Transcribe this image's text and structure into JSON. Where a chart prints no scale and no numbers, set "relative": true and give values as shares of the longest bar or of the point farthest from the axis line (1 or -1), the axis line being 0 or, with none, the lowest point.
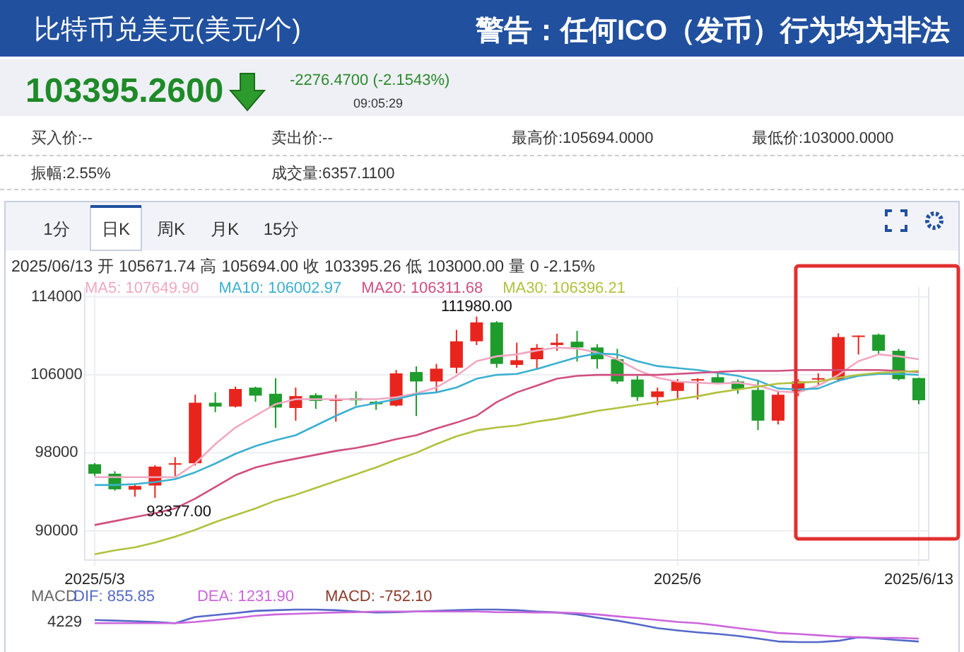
{
  "chart_data": [
    {
      "type": "other",
      "title": "比特币兑美元(美元/个)",
      "subtitle": "警告：任何ICO（发币）行为均为非法",
      "annotations": [
        "103395.2600",
        "-2276.4700 (-2.1543%)",
        "09:05:29",
        "买入价:--",
        "卖出价:--",
        "最高价:105694.0000",
        "最低价:103000.0000",
        "振幅:2.55%",
        "成交量:6357.1100",
        "1分",
        "日K",
        "周K",
        "月K",
        "15分"
      ]
    },
    {
      "type": "candlestick",
      "title": "2025/06/13 开 105671.74 高 105694.00 收 103395.26 低 103000.00 量 0 -2.15%",
      "categories": [
        "2025/5/3",
        null,
        null,
        null,
        null,
        null,
        null,
        null,
        null,
        null,
        null,
        null,
        null,
        null,
        null,
        null,
        null,
        null,
        null,
        null,
        null,
        null,
        null,
        null,
        null,
        null,
        null,
        null,
        null,
        "2025/6",
        null,
        null,
        null,
        null,
        null,
        null,
        null,
        null,
        null,
        null,
        null,
        "2025/6/13"
      ],
      "ohlc": [
        [
          96830,
          96930,
          95620,
          95860
        ],
        [
          95860,
          96110,
          94120,
          94260
        ],
        [
          94220,
          94750,
          93500,
          94600
        ],
        [
          94650,
          96740,
          93377,
          96590
        ],
        [
          96830,
          97560,
          95620,
          96930
        ],
        [
          96930,
          103960,
          96690,
          103140
        ],
        [
          103140,
          104210,
          102170,
          102750
        ],
        [
          102750,
          104790,
          102650,
          104550
        ],
        [
          104690,
          104790,
          103240,
          103870
        ],
        [
          104060,
          105660,
          100570,
          102650
        ],
        [
          102600,
          104690,
          101300,
          103820
        ],
        [
          103920,
          104110,
          102510,
          103330
        ],
        [
          103380,
          103960,
          101200,
          103480
        ],
        [
          103620,
          104300,
          102850,
          103380
        ],
        [
          103240,
          103330,
          102410,
          102990
        ],
        [
          102850,
          106490,
          102750,
          106150
        ],
        [
          106290,
          106870,
          101780,
          105320
        ],
        [
          105320,
          107120,
          104210,
          106630
        ],
        [
          106730,
          110610,
          106150,
          109440
        ],
        [
          109440,
          111980,
          109060,
          111380
        ],
        [
          111380,
          111500,
          106730,
          107120
        ],
        [
          107020,
          109300,
          106730,
          107500
        ],
        [
          107600,
          109150,
          106530,
          108770
        ],
        [
          109060,
          110220,
          108470,
          109300
        ],
        [
          109400,
          110510,
          107360,
          108810
        ],
        [
          108810,
          109150,
          106630,
          107600
        ],
        [
          107600,
          108670,
          105080,
          105320
        ],
        [
          105520,
          105900,
          103330,
          103720
        ],
        [
          103720,
          104690,
          102900,
          104300
        ],
        [
          104350,
          105560,
          103580,
          105320
        ],
        [
          105470,
          105660,
          103480,
          105560
        ],
        [
          105760,
          106240,
          105080,
          105180
        ],
        [
          105320,
          105520,
          104060,
          104550
        ],
        [
          104450,
          105520,
          100330,
          101300
        ],
        [
          101300,
          104300,
          100910,
          103960
        ],
        [
          104300,
          105560,
          103820,
          105320
        ],
        [
          105560,
          106150,
          104840,
          105660
        ],
        [
          105520,
          110270,
          105270,
          109880
        ],
        [
          109930,
          110030,
          108090,
          110030
        ],
        [
          110120,
          110220,
          108090,
          108470
        ],
        [
          108470,
          108670,
          105420,
          105560
        ],
        [
          105671.74,
          105694,
          103000,
          103395.26
        ]
      ],
      "colors": [
        "#1e9c2c",
        "#1e9c2c",
        "#e8251d",
        "#e8251d",
        "#e8251d",
        "#e8251d",
        "#1e9c2c",
        "#e8251d",
        "#1e9c2c",
        "#1e9c2c",
        "#e8251d",
        "#1e9c2c",
        "#e8251d",
        "#1e9c2c",
        "#1e9c2c",
        "#e8251d",
        "#1e9c2c",
        "#e8251d",
        "#e8251d",
        "#e8251d",
        "#1e9c2c",
        "#e8251d",
        "#e8251d",
        "#e8251d",
        "#1e9c2c",
        "#1e9c2c",
        "#1e9c2c",
        "#1e9c2c",
        "#e8251d",
        "#e8251d",
        "#e8251d",
        "#1e9c2c",
        "#1e9c2c",
        "#1e9c2c",
        "#e8251d",
        "#e8251d",
        "#e8251d",
        "#e8251d",
        "#e8251d",
        "#1e9c2c",
        "#1e9c2c",
        "#1e9c2c"
      ],
      "series": [
        {
          "type": "line",
          "name": "MA5: 107649.90",
          "color": "#f0a8c2",
          "values": [
            95500,
            95500,
            95500,
            95500,
            95500,
            96900,
            98900,
            100600,
            101800,
            103000,
            103500,
            103500,
            103500,
            103500,
            103500,
            103700,
            104100,
            104700,
            105900,
            107400,
            107900,
            108100,
            108500,
            108800,
            108700,
            108300,
            107600,
            106500,
            105700,
            105300,
            105200,
            105100,
            105200,
            104900,
            104300,
            104200,
            104900,
            106000,
            107400,
            108100,
            107900,
            107600
          ]
        },
        {
          "type": "line",
          "name": "MA10: 106002.97",
          "color": "#3cb0d0",
          "values": [
            94700,
            94700,
            94800,
            95000,
            95300,
            96000,
            96900,
            97900,
            98700,
            99300,
            99800,
            100800,
            101800,
            102700,
            103100,
            103500,
            104000,
            104200,
            104700,
            105600,
            106000,
            106100,
            106600,
            107200,
            107800,
            108200,
            108100,
            107400,
            106900,
            106700,
            106500,
            106200,
            105900,
            105400,
            104600,
            104500,
            104600,
            105400,
            105900,
            106100,
            106100,
            106000
          ]
        },
        {
          "type": "line",
          "name": "MA20: 106311.68",
          "color": "#d04f80",
          "values": [
            90600,
            91000,
            91400,
            91800,
            92300,
            93300,
            94500,
            95700,
            96500,
            97000,
            97400,
            97800,
            98200,
            98500,
            98900,
            99400,
            99800,
            100500,
            101100,
            101800,
            103200,
            104200,
            104900,
            105600,
            105900,
            106000,
            106000,
            106000,
            106000,
            106100,
            106200,
            106300,
            106400,
            106400,
            106400,
            106500,
            106500,
            106500,
            106500,
            106500,
            106400,
            106300
          ]
        },
        {
          "type": "line",
          "name": "MA30: 106396.21",
          "color": "#b2c13e",
          "values": [
            87600,
            88000,
            88300,
            88800,
            89400,
            90100,
            90900,
            91600,
            92300,
            93100,
            93700,
            94400,
            95100,
            95800,
            96500,
            97300,
            98000,
            98900,
            99700,
            100300,
            100600,
            100800,
            101200,
            101500,
            101900,
            102300,
            102600,
            102900,
            103200,
            103500,
            103800,
            104200,
            104500,
            104800,
            105100,
            105200,
            105300,
            105700,
            106000,
            106200,
            106300,
            106400
          ]
        }
      ],
      "ylim": [
        87000,
        115000
      ],
      "yticks": [
        90000,
        98000,
        106000,
        114000
      ],
      "grid": true,
      "legend": "top left",
      "annotations": [
        {
          "text": "111980.00",
          "y": 111980
        },
        {
          "text": "93377.00",
          "y": 93377
        }
      ]
    },
    {
      "type": "line",
      "relative": true,
      "title": "MACD",
      "categories": [
        null,
        null,
        null,
        null,
        null,
        null,
        null,
        null,
        null,
        null,
        null,
        null,
        null,
        null,
        null,
        null,
        null,
        null,
        null,
        null,
        null,
        null,
        null,
        null,
        null,
        null,
        null,
        null,
        null,
        null,
        null,
        null,
        null,
        null,
        null,
        null,
        null,
        null,
        null,
        null,
        null,
        null
      ],
      "series": [
        {
          "name": "DIF: 855.85",
          "color": "#5468c8",
          "values": [
            0.68,
            0.66,
            0.64,
            0.62,
            0.58,
            0.77,
            0.83,
            0.89,
            0.96,
            0.98,
            1,
            1,
            0.98,
            0.94,
            0.91,
            0.92,
            0.94,
            0.96,
            0.98,
            1,
            1,
            0.98,
            0.94,
            0.91,
            0.85,
            0.75,
            0.66,
            0.55,
            0.43,
            0.36,
            0.3,
            0.25,
            0.19,
            0.11,
            0.02,
            0,
            0,
            0.04,
            0.15,
            0.11,
            0.06,
            0.02
          ]
        },
        {
          "name": "DEA: 1231.90",
          "color": "#cc66dd",
          "values": [
            0.58,
            0.58,
            0.58,
            0.58,
            0.58,
            0.62,
            0.68,
            0.74,
            0.81,
            0.85,
            0.87,
            0.89,
            0.91,
            0.92,
            0.94,
            0.94,
            0.94,
            0.94,
            0.94,
            0.94,
            0.92,
            0.92,
            0.91,
            0.91,
            0.89,
            0.85,
            0.79,
            0.74,
            0.68,
            0.62,
            0.58,
            0.51,
            0.43,
            0.36,
            0.28,
            0.25,
            0.21,
            0.17,
            0.15,
            0.13,
            0.13,
            0.11
          ]
        }
      ],
      "legend": "top left",
      "annotations": [
        "MACD: -752.10",
        "4229"
      ]
    }
  ]
}
